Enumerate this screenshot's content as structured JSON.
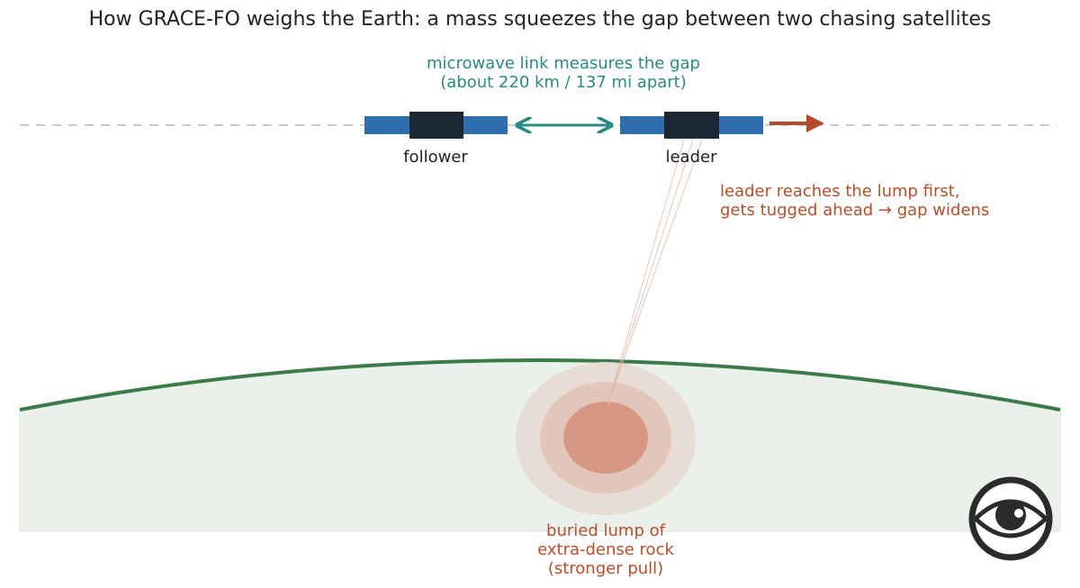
{
  "title": "How GRACE-FO weighs the Earth: a mass squeezes the gap between two chasing satellites",
  "link_label": [
    "microwave link measures the gap",
    "(about 220 km / 137 mi apart)"
  ],
  "satellites": [
    {
      "label": "follower"
    },
    {
      "label": "leader"
    }
  ],
  "leader_note": [
    "leader reaches the lump first,",
    "gets tugged ahead → gap widens"
  ],
  "lump_label": [
    "buried lump of",
    "extra-dense rock",
    "(stronger pull)"
  ]
}
